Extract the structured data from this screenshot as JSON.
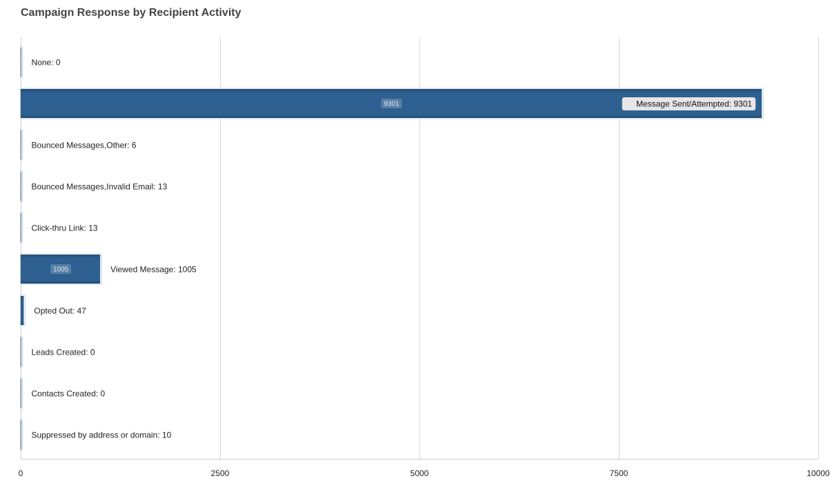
{
  "chart_data": {
    "type": "bar",
    "orientation": "horizontal",
    "title": "Campaign Response by Recipient Activity",
    "categories": [
      "None",
      "Message Sent/Attempted",
      "Bounced Messages,Other",
      "Bounced Messages,Invalid Email",
      "Click-thru Link",
      "Viewed Message",
      "Opted Out",
      "Leads Created",
      "Contacts Created",
      "Suppressed by address or domain"
    ],
    "values": [
      0,
      9301,
      6,
      13,
      13,
      1005,
      47,
      0,
      0,
      10
    ],
    "in_bar_labels": [
      "",
      "9301",
      "",
      "",
      "",
      "1005",
      "",
      "",
      "",
      ""
    ],
    "highlighted_category": "Message Sent/Attempted",
    "xlim": [
      0,
      10000
    ],
    "xticks": [
      0,
      2500,
      5000,
      7500,
      10000
    ],
    "xlabel": "",
    "ylabel": "",
    "grid": true,
    "legend": "none",
    "colors": {
      "bar": "#2b5d8c",
      "bar_edge": "#ffffff",
      "bar_halo": "#c9d2db",
      "grid": "#d6d6d6",
      "axis": "#cfcfcf",
      "highlight_box": "#e6e6e6"
    }
  }
}
